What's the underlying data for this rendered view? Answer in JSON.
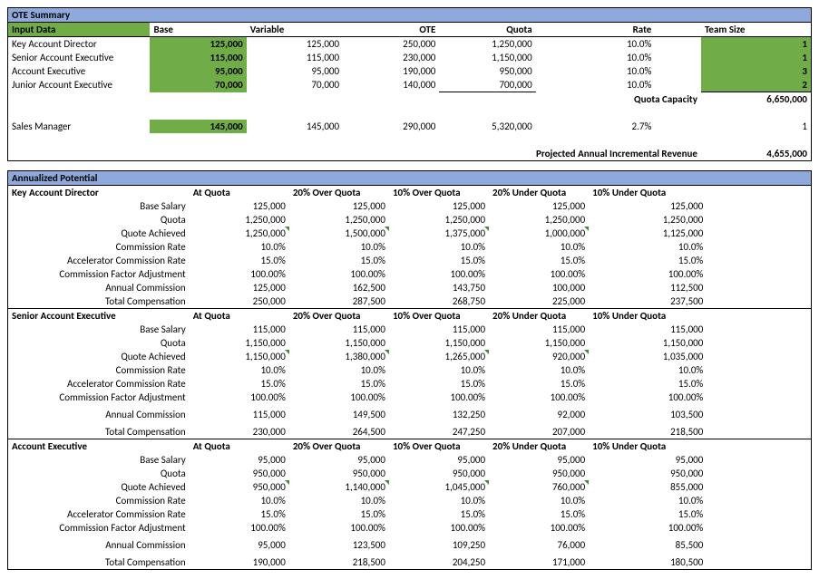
{
  "ote": {
    "title": "OTE Summary",
    "inputLabel": "Input Data",
    "cols": [
      "Base",
      "Variable",
      "OTE",
      "Quota",
      "Rate",
      "Team Size"
    ],
    "rows": [
      {
        "role": "Key Account Director",
        "base": "125,000",
        "var": "125,000",
        "ote": "250,000",
        "quota": "1,250,000",
        "rate": "10.0%",
        "team": "1"
      },
      {
        "role": "Senior Account Executive",
        "base": "115,000",
        "var": "115,000",
        "ote": "230,000",
        "quota": "1,150,000",
        "rate": "10.0%",
        "team": "1"
      },
      {
        "role": "Account Executive",
        "base": "95,000",
        "var": "95,000",
        "ote": "190,000",
        "quota": "950,000",
        "rate": "10.0%",
        "team": "3"
      },
      {
        "role": "Junior Account Executive",
        "base": "70,000",
        "var": "70,000",
        "ote": "140,000",
        "quota": "700,000",
        "rate": "10.0%",
        "team": "2"
      }
    ],
    "quotaCapLabel": "Quota Capacity",
    "quotaCap": "6,650,000",
    "mgr": {
      "role": "Sales Manager",
      "base": "145,000",
      "var": "145,000",
      "ote": "290,000",
      "quota": "5,320,000",
      "rate": "2.7%",
      "team": "1"
    },
    "projLabel": "Projected Annual Incremental Revenue",
    "proj": "4,655,000"
  },
  "ap": {
    "title": "Annualized Potential",
    "scenCols": [
      "At Quota",
      "20% Over Quota",
      "10% Over Quota",
      "20% Under Quota",
      "10% Under Quota"
    ],
    "metrics": [
      "Base Salary",
      "Quota",
      "Quote Achieved",
      "Commission Rate",
      "Accelerator Commission Rate",
      "Commission Factor Adjustment",
      "Annual Commission",
      "Total Compensation"
    ],
    "groups": [
      {
        "role": "Key Account Director",
        "rows": [
          [
            "125,000",
            "125,000",
            "125,000",
            "125,000",
            "125,000"
          ],
          [
            "1,250,000",
            "1,250,000",
            "1,250,000",
            "1,250,000",
            "1,250,000"
          ],
          [
            "1,250,000",
            "1,500,000",
            "1,375,000",
            "1,000,000",
            "1,125,000"
          ],
          [
            "10.0%",
            "10.0%",
            "10.0%",
            "10.0%",
            "10.0%"
          ],
          [
            "15.0%",
            "15.0%",
            "15.0%",
            "15.0%",
            "15.0%"
          ],
          [
            "100.00%",
            "100.00%",
            "100.00%",
            "100.00%",
            "100.00%"
          ],
          [
            "125,000",
            "162,500",
            "143,750",
            "100,000",
            "112,500"
          ],
          [
            "250,000",
            "287,500",
            "268,750",
            "225,000",
            "237,500"
          ]
        ]
      },
      {
        "role": "Senior Account Executive",
        "rows": [
          [
            "115,000",
            "115,000",
            "115,000",
            "115,000",
            "115,000"
          ],
          [
            "1,150,000",
            "1,150,000",
            "1,150,000",
            "1,150,000",
            "1,150,000"
          ],
          [
            "1,150,000",
            "1,380,000",
            "1,265,000",
            "920,000",
            "1,035,000"
          ],
          [
            "10.0%",
            "10.0%",
            "10.0%",
            "10.0%",
            "10.0%"
          ],
          [
            "15.0%",
            "15.0%",
            "15.0%",
            "15.0%",
            "15.0%"
          ],
          [
            "100.00%",
            "100.00%",
            "100.00%",
            "100.00%",
            "100.00%"
          ],
          [
            "115,000",
            "149,500",
            "132,250",
            "92,000",
            "103,500"
          ],
          [
            "230,000",
            "264,500",
            "247,250",
            "207,000",
            "218,500"
          ]
        ]
      },
      {
        "role": "Account Executive",
        "rows": [
          [
            "95,000",
            "95,000",
            "95,000",
            "95,000",
            "95,000"
          ],
          [
            "950,000",
            "950,000",
            "950,000",
            "950,000",
            "950,000"
          ],
          [
            "950,000",
            "1,140,000",
            "1,045,000",
            "760,000",
            "855,000"
          ],
          [
            "10.0%",
            "10.0%",
            "10.0%",
            "10.0%",
            "10.0%"
          ],
          [
            "15.0%",
            "15.0%",
            "15.0%",
            "15.0%",
            "15.0%"
          ],
          [
            "100.00%",
            "100.00%",
            "100.00%",
            "100.00%",
            "100.00%"
          ],
          [
            "95,000",
            "123,500",
            "109,250",
            "76,000",
            "85,500"
          ],
          [
            "190,000",
            "218,500",
            "204,250",
            "171,000",
            "180,500"
          ]
        ]
      }
    ]
  }
}
